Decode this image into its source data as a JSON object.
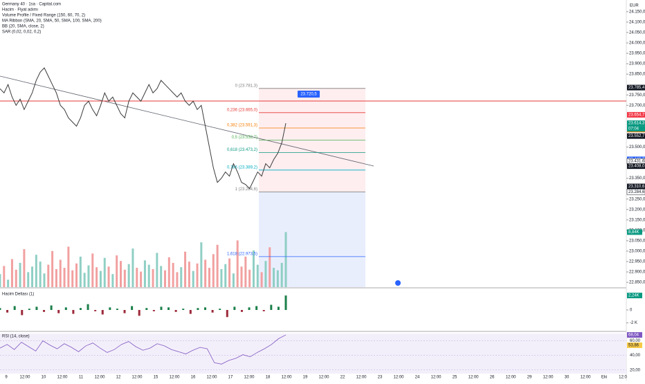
{
  "header": {
    "symbol": "Germany 40 · 1sa · Capital.com",
    "lines": [
      "Hacim · Fiyat adımı",
      "Volume Profile / Fixed Range (150, 60, 70, 2)",
      "MA Ribbon (SMA, 20, SMA, 50, SMA, 100, SMA, 200)",
      "BB (20, SMA, close, 2)",
      "SAR (0,02, 0,02, 0,2)"
    ],
    "currency": "EUR"
  },
  "price_pane": {
    "ylim": [
      22827,
      24206
    ],
    "yticks": [
      {
        "value": 24150,
        "label": "24.150,0"
      },
      {
        "value": 24100,
        "label": "24.100,0"
      },
      {
        "value": 24050,
        "label": "24.050,0"
      },
      {
        "value": 24000,
        "label": "24.000,0"
      },
      {
        "value": 23950,
        "label": "23.950,0"
      },
      {
        "value": 23900,
        "label": "23.900,0"
      },
      {
        "value": 23850,
        "label": "23.850,0"
      },
      {
        "value": 23750,
        "label": "23.750,0"
      },
      {
        "value": 23700,
        "label": "23.700,0"
      },
      {
        "value": 23500,
        "label": "23.500,0"
      },
      {
        "value": 23350,
        "label": "23.350,0"
      },
      {
        "value": 23250,
        "label": "23.250,0"
      },
      {
        "value": 23200,
        "label": "23.200,0"
      },
      {
        "value": 23150,
        "label": "23.150,0"
      },
      {
        "value": 23100,
        "label": "23.100,0"
      },
      {
        "value": 23050,
        "label": "23.050,0"
      },
      {
        "value": 23000,
        "label": "23.000,0"
      },
      {
        "value": 22950,
        "label": "22.950,0"
      },
      {
        "value": 22900,
        "label": "22.900,0"
      },
      {
        "value": 22850,
        "label": "22.850,0"
      }
    ],
    "close": {
      "color": "#3a3a3a",
      "values": [
        23780,
        23760,
        23800,
        23740,
        23700,
        23730,
        23680,
        23720,
        23760,
        23820,
        23860,
        23880,
        23840,
        23800,
        23760,
        23700,
        23680,
        23640,
        23620,
        23600,
        23640,
        23700,
        23720,
        23680,
        23650,
        23700,
        23760,
        23720,
        23740,
        23700,
        23660,
        23640,
        23720,
        23760,
        23740,
        23720,
        23760,
        23800,
        23760,
        23780,
        23820,
        23800,
        23780,
        23760,
        23740,
        23760,
        23720,
        23700,
        23720,
        23680,
        23700,
        23600,
        23500,
        23400,
        23330,
        23350,
        23380,
        23360,
        23420,
        23380,
        23330,
        23320,
        23300,
        23340,
        23380,
        23360,
        23420,
        23400,
        23440,
        23470,
        23520,
        23614.3
      ]
    },
    "volume": {
      "vlim": [
        0,
        10
      ],
      "up": "#8fcfc4",
      "down": "#f2a0a0",
      "values": [
        2.1,
        3.4,
        1.2,
        4.5,
        2.8,
        3.9,
        6.1,
        2.4,
        3.3,
        5.2,
        4.1,
        2.2,
        3.6,
        5.8,
        2.9,
        4.4,
        3.1,
        6.5,
        2.7,
        3.8,
        4.9,
        2.3,
        3.5,
        5.4,
        3.2,
        2.6,
        4.7,
        3.3,
        2.1,
        5.1,
        4.2,
        2.8,
        3.7,
        6.2,
        3.1,
        2.5,
        4.3,
        3.6,
        2.9,
        5.5,
        3.4,
        2.7,
        4.8,
        3.9,
        2.4,
        3.2,
        5.7,
        4.1,
        2.6,
        3.8,
        7.2,
        4.4,
        3.1,
        5.3,
        6.8,
        2.9,
        3.7,
        4.6,
        2.2,
        7.5,
        3.3,
        4.9,
        2.8,
        5.9,
        3.6,
        2.4,
        4.2,
        6.4,
        3.1,
        2.7,
        3.9,
        8.84
      ],
      "last_label": "8,84K"
    },
    "fib": [
      {
        "price": 23781.3,
        "label": "0 (23.781,3)",
        "color": "#808080"
      },
      {
        "price": 23665,
        "label": "0,236 (23.665,0)",
        "color": "#e53935"
      },
      {
        "price": 23591.3,
        "label": "0,382 (23.591,3)",
        "color": "#f57c00"
      },
      {
        "price": 23532.7,
        "label": "0,5 (23.532,7)",
        "color": "#4caf50"
      },
      {
        "price": 23473.2,
        "label": "0,618 (23.473,2)",
        "color": "#089981"
      },
      {
        "price": 23389.2,
        "label": "0,786 (23.389,2)",
        "color": "#00acc1"
      },
      {
        "price": 23284.6,
        "label": "1 (23.284,6)",
        "color": "#808080"
      },
      {
        "price": 22973.5,
        "label": "1,618 (22.973,5)",
        "color": "#2962ff"
      }
    ],
    "tags": [
      {
        "value": 23785.4,
        "label": "23.785,4",
        "color": "#131722"
      },
      {
        "value": 23654.7,
        "label": "23.654,7",
        "color": "#f23645"
      },
      {
        "value": 23614.3,
        "label": "23.614,3",
        "color": "#089981"
      },
      {
        "value": 23584.2,
        "label": "23.584,2",
        "color": "#f57c00"
      },
      {
        "value": 23552.7,
        "label": "23.552,7",
        "color": "#131722"
      },
      {
        "value": 23440.7,
        "label": "23.440,7",
        "color": "#2962ff"
      },
      {
        "value": 23431.6,
        "label": "23.431,6",
        "color": "#ffffff"
      },
      {
        "value": 23408,
        "label": "23.408,0",
        "color": "#131722"
      },
      {
        "value": 23310.6,
        "label": "23.310,6",
        "color": "#131722"
      },
      {
        "value": 23284.6,
        "label": "23.284,6",
        "color": "#ffffff"
      }
    ],
    "countdown": "07:04",
    "target_label": "23.720,5"
  },
  "delta_pane": {
    "title": "Hacim Deltası (1)",
    "ylim": [
      -3,
      3
    ],
    "yticks": [
      {
        "value": 0,
        "label": "0"
      },
      {
        "value": -2,
        "label": "-2 K"
      }
    ],
    "last_label": "2,24K",
    "values": [
      0.3,
      -0.4,
      0.6,
      -0.8,
      0.2,
      0.5,
      -0.3,
      0.7,
      -0.5,
      0.4,
      -0.6,
      0.3,
      0.9,
      -0.2,
      -0.7,
      0.4,
      0.2,
      -0.5,
      0.6,
      -0.9,
      0.3,
      -0.2,
      0.5,
      0.4,
      -0.3,
      0.2,
      -0.6,
      0.3,
      0.4,
      -0.4,
      0.2,
      -1.1,
      0.5,
      -0.3,
      0.4,
      0.6,
      -0.2,
      0.8,
      0.5,
      2.24
    ]
  },
  "rsi_pane": {
    "title": "RSI (14, close)",
    "ylim": [
      15,
      70
    ],
    "yticks": [
      {
        "value": 60,
        "label": "60,00"
      },
      {
        "value": 40,
        "label": "40,00"
      },
      {
        "value": 20,
        "label": "20,00"
      }
    ],
    "tags": [
      {
        "value": 68.04,
        "label": "68,04",
        "color": "#7e57c2"
      },
      {
        "value": 53.86,
        "label": "53,86",
        "color": "#f7c948"
      }
    ],
    "values": [
      50,
      55,
      48,
      58,
      52,
      46,
      60,
      54,
      49,
      56,
      51,
      45,
      53,
      57,
      50,
      44,
      48,
      55,
      59,
      52,
      47,
      50,
      56,
      53,
      48,
      45,
      42,
      47,
      51,
      49,
      30,
      28,
      33,
      36,
      41,
      38,
      44,
      49,
      55,
      63,
      68.04
    ]
  },
  "x_axis": {
    "labels": [
      "9",
      "12:00",
      "10",
      "12:00",
      "11",
      "12:00",
      "12",
      "12:00",
      "15",
      "12:00",
      "16",
      "12:00",
      "17",
      "12:00",
      "18",
      "12:00",
      "19",
      "12:00",
      "22",
      "12:00",
      "23",
      "12:00",
      "24",
      "12:00",
      "25",
      "12:00",
      "26",
      "12:00",
      "29",
      "12:00",
      "30",
      "12:00",
      "Eki",
      "12:0"
    ]
  }
}
